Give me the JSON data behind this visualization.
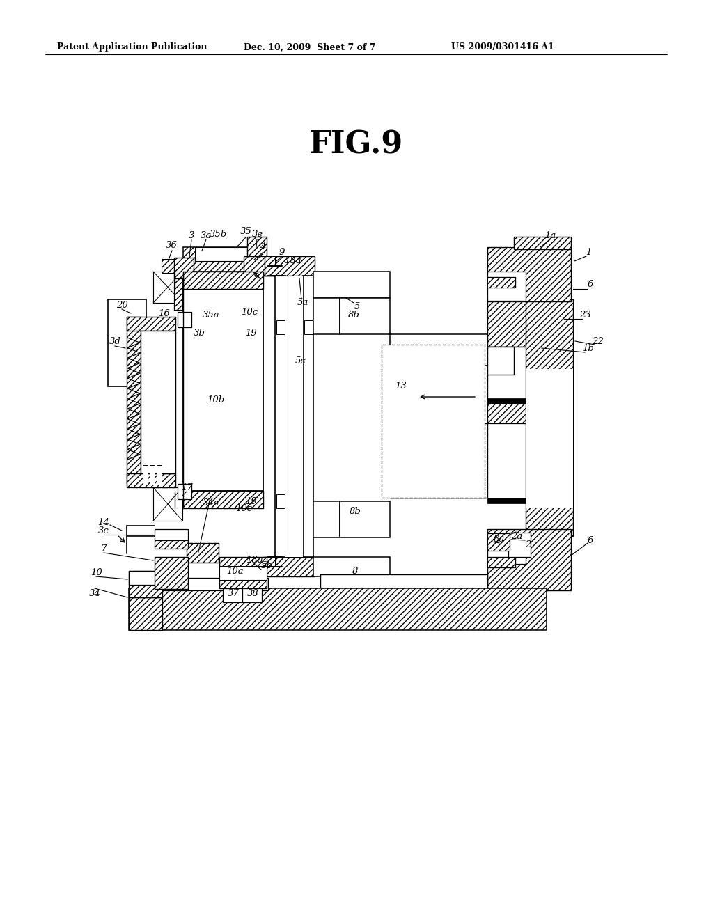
{
  "title": "FIG.9",
  "header_left": "Patent Application Publication",
  "header_center": "Dec. 10, 2009  Sheet 7 of 7",
  "header_right": "US 2009/0301416 A1",
  "bg_color": "#ffffff",
  "fig_width": 10.24,
  "fig_height": 13.2,
  "dpi": 100
}
